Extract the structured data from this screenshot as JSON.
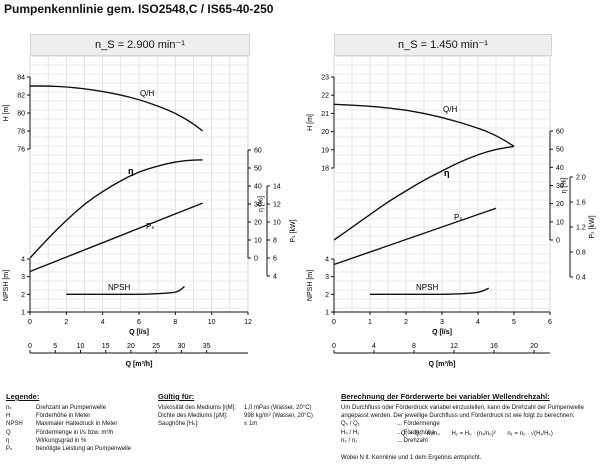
{
  "page": {
    "title": "Pumpenkennlinie gem. ISO2548,C / IS65-40-250"
  },
  "speed_labels": [
    "n_S = 2.900 min⁻¹",
    "n_S = 1.450 min⁻¹"
  ],
  "colors": {
    "curve": "#111111",
    "grid": "#d4d4d4",
    "header_bg": "#eeeeee"
  },
  "chart_data": [
    {
      "type": "line",
      "title": "n_S = 2.900 min⁻¹",
      "xlabel": "Q [l/s]",
      "x2label": "Q [m³/h]",
      "xlim": [
        0,
        12
      ],
      "xticks": [
        "0",
        "2",
        "4",
        "6",
        "8",
        "10",
        "12"
      ],
      "x2lim": [
        0,
        35
      ],
      "x2ticks": [
        "0",
        "5",
        "10",
        "15",
        "20",
        "25",
        "30",
        "35"
      ],
      "axes": {
        "H": {
          "label": "H [m]",
          "range": [
            76,
            84
          ],
          "ticks": [
            "76",
            "78",
            "80",
            "82",
            "84"
          ]
        },
        "eta": {
          "label": "η [%]",
          "range": [
            0,
            60
          ],
          "ticks": [
            "0",
            "10",
            "20",
            "30",
            "40",
            "50",
            "60"
          ]
        },
        "P": {
          "label": "Pₛ [kW]",
          "range": [
            4,
            14
          ],
          "ticks": [
            "4",
            "6",
            "8",
            "10",
            "12",
            "14"
          ]
        },
        "NPSH": {
          "label": "NPSH [m]",
          "range": [
            1,
            4
          ],
          "ticks": [
            "1",
            "2",
            "3",
            "4"
          ]
        }
      },
      "series": [
        {
          "name": "Q/H",
          "axis": "H",
          "x": [
            0,
            1,
            2,
            3,
            4,
            5,
            6,
            7,
            8,
            9,
            9.5
          ],
          "y": [
            83.0,
            83.0,
            82.9,
            82.7,
            82.4,
            82.0,
            81.5,
            80.8,
            80.0,
            78.8,
            78.0
          ]
        },
        {
          "name": "η",
          "axis": "eta",
          "x": [
            0,
            1,
            2,
            3,
            4,
            5,
            6,
            7,
            8,
            9,
            9.5
          ],
          "y": [
            0,
            11,
            21,
            30,
            37,
            43,
            48,
            51,
            53.5,
            54.5,
            54.5
          ]
        },
        {
          "name": "Pₛ",
          "axis": "P",
          "x": [
            0,
            9.5
          ],
          "y": [
            4.5,
            12.1
          ]
        },
        {
          "name": "NPSH",
          "axis": "NPSH",
          "x": [
            2,
            4,
            6,
            7,
            8,
            8.3,
            8.5
          ],
          "y": [
            2.0,
            2.0,
            2.0,
            2.03,
            2.1,
            2.25,
            2.45
          ]
        }
      ]
    },
    {
      "type": "line",
      "title": "n_S = 1.450 min⁻¹",
      "xlabel": "Q [l/s]",
      "x2label": "Q [m³/h]",
      "xlim": [
        0,
        6
      ],
      "xticks": [
        "0",
        "1",
        "2",
        "3",
        "4",
        "5",
        "6"
      ],
      "x2lim": [
        0,
        20
      ],
      "x2ticks": [
        "0",
        "4",
        "8",
        "12",
        "16",
        "20"
      ],
      "axes": {
        "H": {
          "label": "H [m]",
          "range": [
            18,
            23
          ],
          "ticks": [
            "18",
            "19",
            "20",
            "21",
            "22",
            "23"
          ]
        },
        "eta": {
          "label": "η [%]",
          "range": [
            0,
            60
          ],
          "ticks": [
            "0",
            "10",
            "20",
            "30",
            "40",
            "50",
            "60"
          ]
        },
        "P": {
          "label": "Pₛ [kW]",
          "range": [
            0.4,
            2.0
          ],
          "ticks": [
            "0.4",
            "0.8",
            "1.2",
            "1.6",
            "2.0"
          ]
        },
        "NPSH": {
          "label": "NPSH [m]",
          "range": [
            1,
            4
          ],
          "ticks": [
            "1",
            "2",
            "3",
            "4"
          ]
        }
      },
      "series": [
        {
          "name": "Q/H",
          "axis": "H",
          "x": [
            0,
            1,
            2,
            3,
            4,
            4.5,
            5
          ],
          "y": [
            21.5,
            21.4,
            21.2,
            20.8,
            20.2,
            19.8,
            19.2
          ]
        },
        {
          "name": "η",
          "axis": "eta",
          "x": [
            0,
            0.5,
            1,
            1.5,
            2,
            2.5,
            3,
            3.5,
            4,
            4.5,
            5
          ],
          "y": [
            0,
            7,
            14,
            21,
            27,
            33,
            38,
            43,
            47,
            50,
            51.5
          ]
        },
        {
          "name": "Pₛ",
          "axis": "P",
          "x": [
            0,
            4.5
          ],
          "y": [
            0.6,
            1.5
          ]
        },
        {
          "name": "NPSH",
          "axis": "NPSH",
          "x": [
            1,
            2,
            3,
            3.8,
            4.1,
            4.3
          ],
          "y": [
            2.0,
            2.0,
            2.0,
            2.05,
            2.15,
            2.35
          ]
        }
      ]
    }
  ],
  "legend": {
    "title": "Legende:",
    "items": [
      {
        "symbol": "nₛ",
        "text": "Drehzahl an Pumpenwelle"
      },
      {
        "symbol": "H",
        "text": "Förderhöhe in Meter"
      },
      {
        "symbol": "NPSH",
        "text": "Maximaler Haltedruck in Meter"
      },
      {
        "symbol": "Q",
        "text": "Fördermenge in l/s bzw. m³/h"
      },
      {
        "symbol": "η",
        "text": "Wirkungsgrad in %"
      },
      {
        "symbol": "Pₛ",
        "text": "benötigte Leistung an Pumpenwelle"
      }
    ]
  },
  "validity": {
    "title": "Gültig für:",
    "items": [
      {
        "label": "Viskosität des Mediums [ηM]:",
        "value": "1,0 mPas (Wasser, 20°C)"
      },
      {
        "label": "Dichte des Mediums [ρM]:",
        "value": "998 kg/m³ (Wasser, 20°C)"
      },
      {
        "label": "Saughöhe [Hₛ]:",
        "value": "≤ 1m"
      }
    ]
  },
  "calc": {
    "title": "Berechnung der Förderwerte bei variabler Wellendrehzahl:",
    "intro": "Um Durchfluss oder Förderdruck variabel einzustellen, kann die Drehzahl der Pumpenwelle angepasst werden. Der jeweilige Durchfluss und Förderdruck ist wie folgt zu berechnen:",
    "defs": [
      {
        "label": "Q₀ / Q₁",
        "text": "... Fördermenge"
      },
      {
        "label": "H₀ / H₁",
        "text": "... Förderhöhe"
      },
      {
        "label": "n₀ / n₁",
        "text": "... Drehzahl"
      }
    ],
    "formulas": [
      "Q₁ = Q₀ · n₁/n₀",
      "H₁ = H₀ · (n₁/n₀)²",
      "n₁ = n₀ · √(H₁/H₀)"
    ],
    "note": "Wobei N lt. Kennlinie und 1 dem Ergebnis entspricht."
  }
}
